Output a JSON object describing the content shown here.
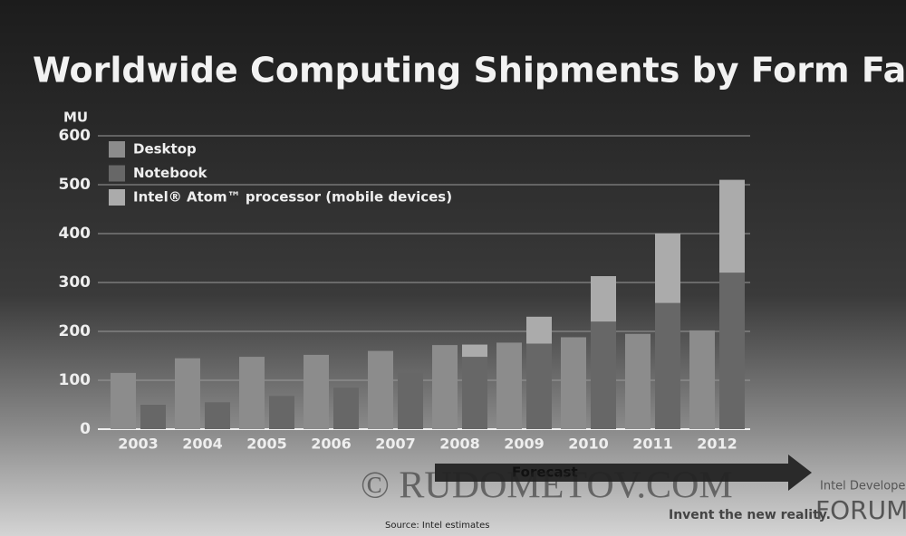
{
  "chart_data": {
    "type": "bar",
    "title": "Worldwide Computing Shipments by Form Factor",
    "y_label": "MU",
    "categories": [
      "2003",
      "2004",
      "2005",
      "2006",
      "2007",
      "2008",
      "2009",
      "2010",
      "2011",
      "2012"
    ],
    "series": [
      {
        "name": "Desktop",
        "color": "#8c8c8c",
        "stack": 0,
        "values": [
          115,
          145,
          148,
          152,
          160,
          172,
          177,
          188,
          195,
          202
        ]
      },
      {
        "name": "Notebook",
        "color": "#676767",
        "stack": 1,
        "values": [
          50,
          55,
          68,
          85,
          115,
          148,
          175,
          220,
          258,
          320
        ]
      },
      {
        "name": "Intel® Atom™ processor (mobile devices)",
        "color": "#ababab",
        "stack": 1,
        "values": [
          null,
          null,
          null,
          null,
          null,
          25,
          55,
          93,
          142,
          190
        ]
      }
    ],
    "ylim": [
      0,
      600
    ],
    "yticks": [
      0,
      100,
      200,
      300,
      400,
      500,
      600
    ],
    "grid": true,
    "legend": "upper left",
    "annotation": "Forecast",
    "source": "Source: Intel estimates",
    "watermark": "© RUDOMETOV.COM",
    "brand": "Intel Developer",
    "brand_word": "FORUM",
    "tagline": "Invent the new reality."
  }
}
